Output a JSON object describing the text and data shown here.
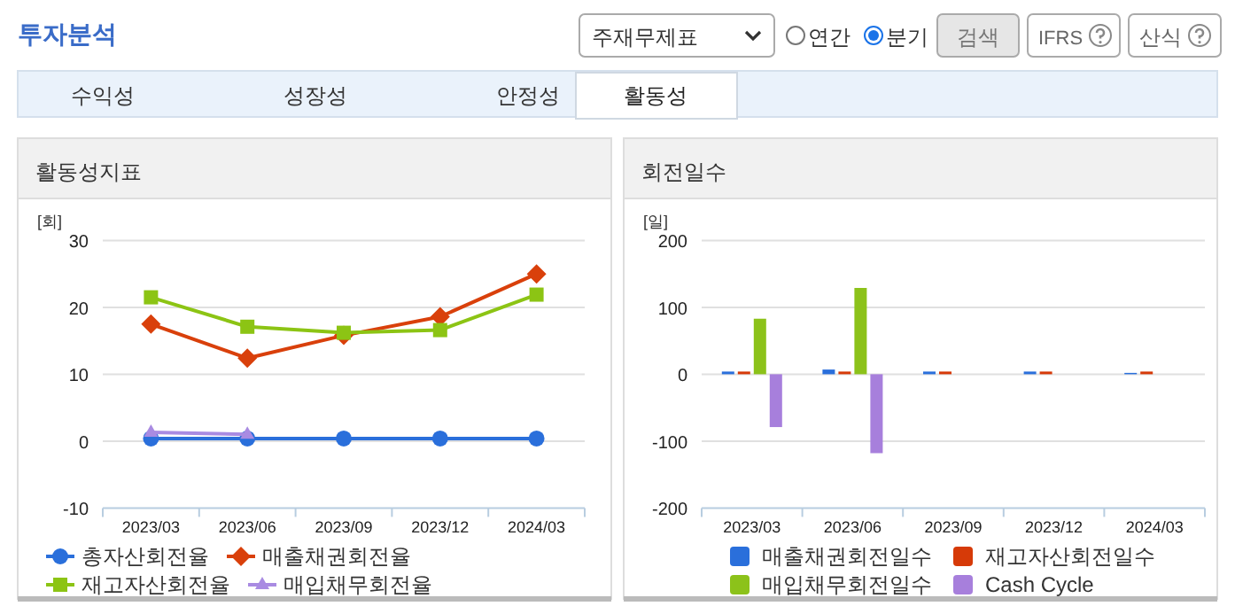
{
  "chart_data": [
    {
      "type": "other",
      "annotations": [
        "투자분석",
        "주재무제표",
        "연간",
        "분기",
        "검색",
        "IFRS",
        "산식",
        "수익성",
        "성장성",
        "안정성",
        "활동성"
      ]
    },
    {
      "type": "line",
      "title": "활동성지표",
      "ylabel": "[회]",
      "categories": [
        "2023/03",
        "2023/06",
        "2023/09",
        "2023/12",
        "2024/03"
      ],
      "ylim": [
        -10,
        30
      ],
      "yticks": [
        -10,
        0,
        10,
        20,
        30
      ],
      "grid": "y",
      "legend": "bottom",
      "series": [
        {
          "name": "총자산회전율",
          "color": "#2a6fdb",
          "marker": "circle",
          "values": [
            0.4,
            0.4,
            0.4,
            0.4,
            0.4
          ]
        },
        {
          "name": "매출채권회전율",
          "color": "#d9400b",
          "marker": "diamond",
          "values": [
            17.5,
            12.4,
            15.8,
            18.6,
            25.0
          ]
        },
        {
          "name": "재고자산회전율",
          "color": "#8cc414",
          "marker": "square",
          "values": [
            21.5,
            17.1,
            16.2,
            16.6,
            21.9
          ]
        },
        {
          "name": "매입채무회전율",
          "color": "#a98be2",
          "marker": "triangle",
          "values": [
            1.3,
            1.0,
            null,
            null,
            null
          ]
        }
      ]
    },
    {
      "type": "bar",
      "title": "회전일수",
      "ylabel": "[일]",
      "categories": [
        "2023/03",
        "2023/06",
        "2023/09",
        "2023/12",
        "2024/03"
      ],
      "ylim": [
        -200,
        200
      ],
      "yticks": [
        -200,
        -100,
        0,
        100,
        200
      ],
      "grid": "y",
      "legend": "bottom",
      "series": [
        {
          "name": "매출채권회전일수",
          "color": "#2a6fdb",
          "values": [
            4,
            7,
            4,
            4,
            2
          ]
        },
        {
          "name": "재고자산회전일수",
          "color": "#d63a08",
          "values": [
            4,
            4,
            4,
            4,
            4
          ]
        },
        {
          "name": "매입채무회전일수",
          "color": "#8cc21a",
          "values": [
            83,
            129,
            null,
            null,
            null
          ]
        },
        {
          "name": "Cash Cycle",
          "color": "#a77fdc",
          "values": [
            -79,
            -118,
            null,
            null,
            null
          ]
        }
      ]
    }
  ]
}
